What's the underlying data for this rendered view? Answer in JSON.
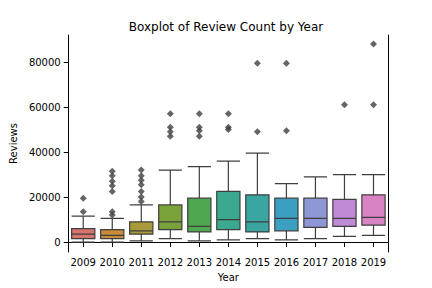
{
  "chart_data": {
    "type": "boxplot",
    "title": "Boxplot of Review Count by Year",
    "x_label": "Year",
    "y_label": "Reviews",
    "categories": [
      "2009",
      "2010",
      "2011",
      "2012",
      "2013",
      "2014",
      "2015",
      "2016",
      "2017",
      "2018",
      "2019"
    ],
    "values": [
      [
        0,
        1500,
        3500,
        6000,
        11500
      ],
      [
        0,
        1500,
        3000,
        5500,
        10500
      ],
      [
        500,
        3500,
        5000,
        9000,
        16500
      ],
      [
        1500,
        5500,
        9000,
        16500,
        32000
      ],
      [
        500,
        4500,
        7000,
        19500,
        33500
      ],
      [
        1000,
        5500,
        10000,
        22500,
        36000
      ],
      [
        1500,
        4500,
        9000,
        21000,
        39500
      ],
      [
        1000,
        5000,
        10500,
        19500,
        26000
      ],
      [
        1500,
        6500,
        10500,
        19500,
        29000
      ],
      [
        2500,
        7000,
        10500,
        19000,
        30000
      ],
      [
        3000,
        7500,
        11000,
        21000,
        30000
      ]
    ],
    "outliers": [
      [
        13500,
        19500
      ],
      [
        12000,
        13500,
        22500,
        25000,
        27000,
        29500,
        31500
      ],
      [
        18000,
        20000,
        22500,
        25500,
        27500,
        29500,
        32000
      ],
      [
        47000,
        49000,
        51000,
        57000
      ],
      [
        47000,
        49500,
        51000,
        57000
      ],
      [
        50000,
        51000,
        57000
      ],
      [
        49000,
        79500
      ],
      [
        49500,
        79500
      ],
      [],
      [
        61000
      ],
      [
        61000,
        88000
      ]
    ],
    "colors": [
      "#d6756b",
      "#c98a3a",
      "#a89a39",
      "#7ba33b",
      "#4fa84f",
      "#3ca98f",
      "#3aa6a2",
      "#3a9fc1",
      "#8f96d6",
      "#bf8ad6",
      "#d883c4"
    ],
    "ylim": [
      -4400,
      92000
    ],
    "yticks": [
      0,
      20000,
      40000,
      60000,
      80000
    ],
    "grid": false
  }
}
